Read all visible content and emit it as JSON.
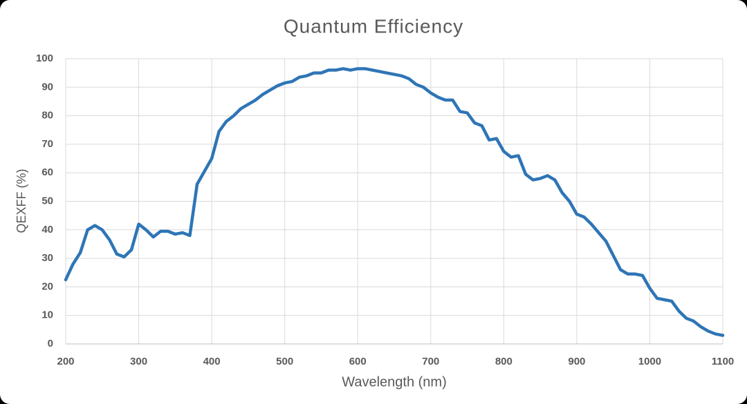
{
  "chart_data": {
    "type": "line",
    "title": "Quantum Efficiency",
    "x_label": "Wavelength (nm)",
    "y_label": "QEXFF (%)",
    "x": [
      200,
      210,
      220,
      230,
      240,
      250,
      260,
      270,
      280,
      290,
      300,
      310,
      320,
      330,
      340,
      350,
      360,
      370,
      380,
      390,
      400,
      410,
      420,
      430,
      440,
      450,
      460,
      470,
      480,
      490,
      500,
      510,
      520,
      530,
      540,
      550,
      560,
      570,
      580,
      590,
      600,
      610,
      620,
      630,
      640,
      650,
      660,
      670,
      680,
      690,
      700,
      710,
      720,
      730,
      740,
      750,
      760,
      770,
      780,
      790,
      800,
      810,
      820,
      830,
      840,
      850,
      860,
      870,
      880,
      890,
      900,
      910,
      920,
      930,
      940,
      950,
      960,
      970,
      980,
      990,
      1000,
      1010,
      1020,
      1030,
      1040,
      1050,
      1060,
      1070,
      1080,
      1090,
      1100
    ],
    "values": [
      22.5,
      28,
      32,
      40,
      41.5,
      40,
      36.5,
      31.5,
      30.5,
      33,
      42,
      40,
      37.5,
      39.5,
      39.5,
      38.5,
      39,
      38,
      56,
      60.5,
      65,
      74.5,
      78,
      80,
      82.5,
      84,
      85.5,
      87.5,
      89,
      90.5,
      91.5,
      92,
      93.5,
      94,
      95,
      95,
      96,
      96,
      96.5,
      96,
      96.5,
      96.5,
      96,
      95.5,
      95,
      94.5,
      94,
      93,
      91,
      90,
      88,
      86.5,
      85.5,
      85.5,
      81.5,
      81,
      77.5,
      76.5,
      71.5,
      72,
      67.5,
      65.5,
      66,
      59.5,
      57.5,
      58,
      59,
      57.5,
      53,
      50,
      45.5,
      44.5,
      42,
      39,
      36,
      31,
      26,
      24.5,
      24.5,
      24,
      19.5,
      16,
      15.5,
      15,
      11.5,
      9,
      8,
      6,
      4.5,
      3.5,
      3
    ],
    "color": "#2e75b6",
    "xlim": [
      200,
      1100
    ],
    "xticks": [
      200,
      300,
      400,
      500,
      600,
      700,
      800,
      900,
      1000,
      1100
    ],
    "ylim": [
      0,
      100
    ],
    "yticks": [
      0,
      10,
      20,
      30,
      40,
      50,
      60,
      70,
      80,
      90,
      100
    ],
    "grid": true
  }
}
